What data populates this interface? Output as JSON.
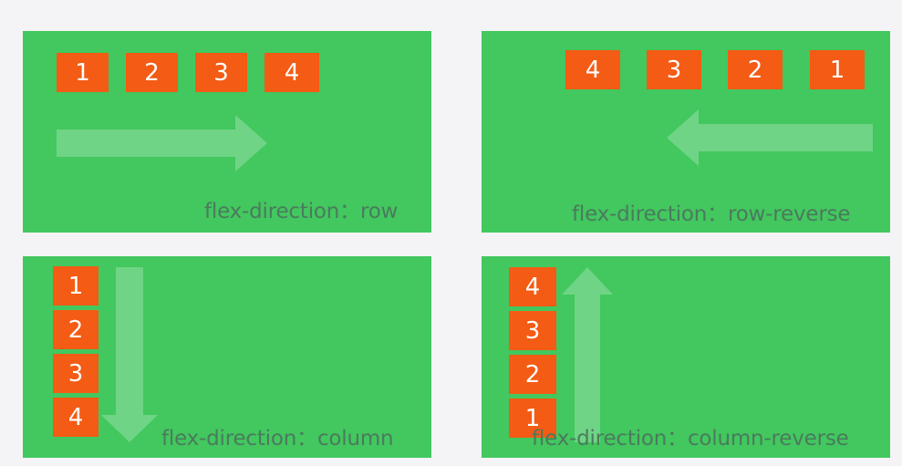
{
  "panels": {
    "row": {
      "caption": "flex-direction：row",
      "items": [
        "1",
        "2",
        "3",
        "4"
      ]
    },
    "row_reverse": {
      "caption": "flex-direction：row-reverse",
      "items": [
        "4",
        "3",
        "2",
        "1"
      ]
    },
    "column": {
      "caption": "flex-direction：column",
      "items": [
        "1",
        "2",
        "3",
        "4"
      ]
    },
    "column_reverse": {
      "caption": "flex-direction：column-reverse",
      "items": [
        "4",
        "3",
        "2",
        "1"
      ]
    }
  },
  "colors": {
    "panel": "#42c85e",
    "item": "#f45b14",
    "arrow": "#6fd486",
    "caption": "#4b7a5e"
  }
}
